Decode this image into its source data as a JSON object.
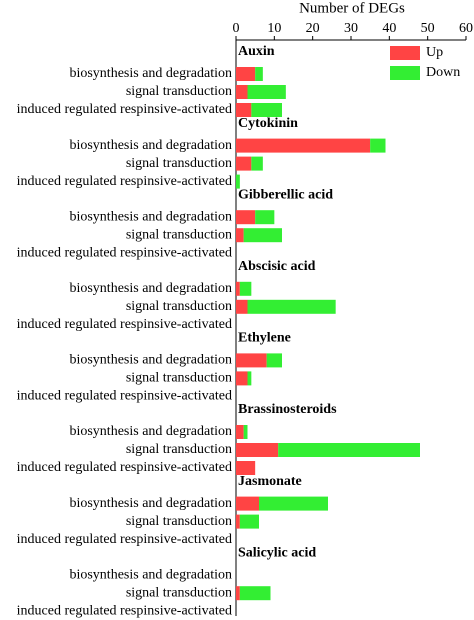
{
  "chart_data": {
    "type": "bar",
    "orientation": "horizontal",
    "stacked": true,
    "x_label": "Number of DEGs",
    "xlim": [
      0,
      60
    ],
    "xticks": [
      0,
      10,
      20,
      30,
      40,
      50,
      60
    ],
    "groups": [
      "Auxin",
      "Cytokinin",
      "Gibberellic acid",
      "Abscisic acid",
      "Ethylene",
      "Brassinosteroids",
      "Jasmonate",
      "Salicylic acid"
    ],
    "categories": [
      "biosynthesis and degradation",
      "signal transduction",
      "induced regulated respinsive-activated",
      "biosynthesis and degradation",
      "signal transduction",
      "induced regulated respinsive-activated",
      "biosynthesis and degradation",
      "signal transduction",
      "induced regulated respinsive-activated",
      "biosynthesis and degradation",
      "signal transduction",
      "induced regulated respinsive-activated",
      "biosynthesis and degradation",
      "signal transduction",
      "induced regulated respinsive-activated",
      "biosynthesis and degradation",
      "signal transduction",
      "induced regulated respinsive-activated",
      "biosynthesis and degradation",
      "signal transduction",
      "induced regulated respinsive-activated",
      "biosynthesis and degradation",
      "signal transduction",
      "induced regulated respinsive-activated"
    ],
    "series": [
      {
        "name": "Up",
        "color": "#ff4444",
        "values": [
          5,
          3,
          4,
          35,
          4,
          0,
          5,
          2,
          0,
          1,
          3,
          0,
          8,
          3,
          0,
          2,
          11,
          5,
          6,
          1,
          0,
          0,
          1,
          0
        ]
      },
      {
        "name": "Down",
        "color": "#33ee33",
        "values": [
          2,
          10,
          8,
          4,
          3,
          1,
          5,
          10,
          0,
          3,
          23,
          0,
          4,
          1,
          0,
          1,
          37,
          0,
          18,
          5,
          0,
          0,
          8,
          0
        ]
      }
    ],
    "legend": "top-right"
  }
}
